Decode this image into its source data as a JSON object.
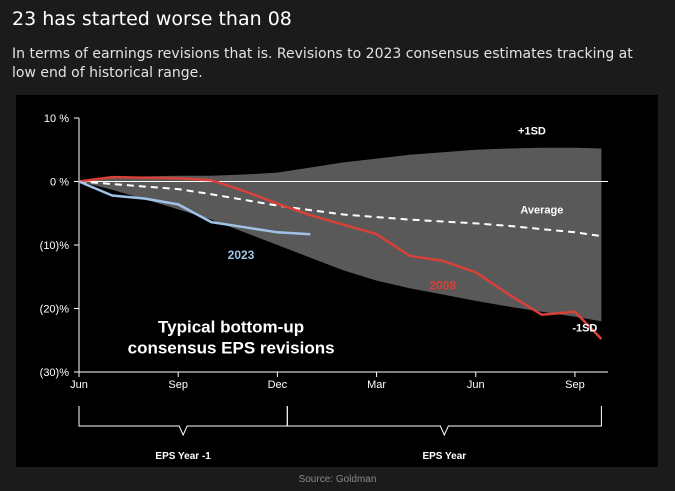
{
  "header": {
    "title": "23 has started worse than 08",
    "subtitle": "In terms of earnings revisions that is. Revisions to 2023 consensus estimates tracking at low end of historical range."
  },
  "footer": {
    "source": "Source: Goldman"
  },
  "colors": {
    "band": "#595959",
    "average": "#ffffff",
    "s2008": "#d9403a",
    "s2023": "#9ec3e6",
    "axis": "#ffffff"
  },
  "chart_data": {
    "type": "line",
    "title": "Typical bottom-up consensus EPS revisions",
    "title_lines": [
      "Typical bottom-up",
      "consensus EPS revisions"
    ],
    "xlabel": "",
    "ylabel": "",
    "x_unit": "months since Jun of EPS Year -1",
    "xlim": [
      0,
      16
    ],
    "ylim": [
      -30,
      10
    ],
    "x_ticks": [
      {
        "x": 0,
        "label": "Jun"
      },
      {
        "x": 3,
        "label": "Sep"
      },
      {
        "x": 6,
        "label": "Dec"
      },
      {
        "x": 9,
        "label": "Mar"
      },
      {
        "x": 12,
        "label": "Jun"
      },
      {
        "x": 15,
        "label": "Sep"
      }
    ],
    "y_ticks": [
      {
        "y": 10,
        "label": "10 %"
      },
      {
        "y": 0,
        "label": "0 %"
      },
      {
        "y": -10,
        "label": "(10)%"
      },
      {
        "y": -20,
        "label": "(20)%"
      },
      {
        "y": -30,
        "label": "(30)%"
      }
    ],
    "period_labels": [
      {
        "label": "EPS Year -1",
        "from": 0,
        "to": 6.3
      },
      {
        "label": "EPS Year",
        "from": 6.3,
        "to": 15.8
      }
    ],
    "band": {
      "upper_label": "+1SD",
      "lower_label": "-1SD",
      "x": [
        0,
        1,
        2,
        3,
        4,
        5,
        6,
        7,
        8,
        9,
        10,
        11,
        12,
        13,
        14,
        15,
        15.8
      ],
      "upper": [
        0,
        0.6,
        0.8,
        0.9,
        0.9,
        1.1,
        1.4,
        2.2,
        3.0,
        3.6,
        4.2,
        4.6,
        5.0,
        5.2,
        5.3,
        5.3,
        5.2
      ],
      "lower": [
        0,
        -1.3,
        -2.8,
        -4.4,
        -6.0,
        -8.0,
        -10.0,
        -12.0,
        -14.0,
        -15.6,
        -16.8,
        -17.8,
        -18.8,
        -19.7,
        -20.5,
        -21.3,
        -22.0
      ]
    },
    "series": [
      {
        "name": "Average",
        "style": "dashed",
        "x": [
          0,
          1,
          2,
          3,
          4,
          5,
          6,
          7,
          8,
          9,
          10,
          11,
          12,
          13,
          14,
          15,
          15.8
        ],
        "values": [
          0,
          -0.4,
          -0.8,
          -1.2,
          -2.0,
          -2.9,
          -3.8,
          -4.5,
          -5.2,
          -5.6,
          -6.0,
          -6.3,
          -6.6,
          -7.0,
          -7.5,
          -8.0,
          -8.6
        ]
      },
      {
        "name": "2008",
        "style": "solid",
        "x": [
          0,
          1,
          2,
          3,
          4,
          5,
          6,
          7,
          8,
          9,
          10,
          11,
          12,
          13,
          14,
          15,
          15.8
        ],
        "values": [
          0,
          0.7,
          0.6,
          0.5,
          0.2,
          -1.5,
          -3.5,
          -5.3,
          -6.8,
          -8.3,
          -11.7,
          -12.5,
          -14.3,
          -17.8,
          -21.0,
          -20.5,
          -24.8
        ]
      },
      {
        "name": "2023",
        "style": "solid",
        "x": [
          0,
          1,
          2,
          3,
          4,
          5,
          6,
          7
        ],
        "values": [
          0,
          -2.2,
          -2.7,
          -3.6,
          -6.4,
          -7.2,
          -8.0,
          -8.3
        ]
      }
    ]
  }
}
